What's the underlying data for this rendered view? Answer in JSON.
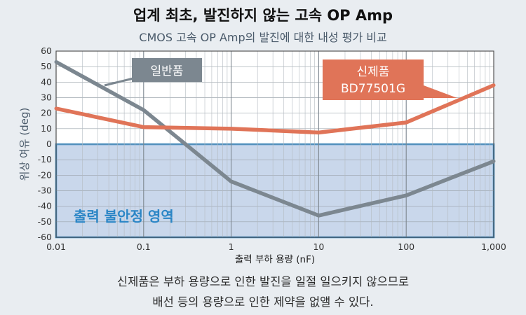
{
  "header": {
    "title": "업계 최초, 발진하지 않는 고속 OP Amp",
    "subtitle": "CMOS 고속 OP Amp의 발진에 대한 내성 평가 비교"
  },
  "footer": {
    "line1": "신제품은 부하 용량으로 인한 발진을 일절 일으키지 않으므로",
    "line2": "배선 등의 용량으로 인한 제약을 없앨 수 있다."
  },
  "chart_data": {
    "type": "line",
    "xscale": "log",
    "xlim": [
      0.01,
      1000
    ],
    "ylim": [
      -60,
      60
    ],
    "xlabel": "출력 부하 용량 (nF)",
    "ylabel": "위상 여유 (deg)",
    "x_ticks": [
      "0.01",
      "0.1",
      "1",
      "10",
      "100",
      "1,000"
    ],
    "y_ticks": [
      60,
      50,
      40,
      30,
      20,
      10,
      0,
      -10,
      -20,
      -30,
      -40,
      -50,
      -60
    ],
    "grid": true,
    "colors": {
      "plot_bg": "#ffffff",
      "unstable_fill": "#c9d7eb",
      "unstable_border": "#2b86c6",
      "general": "#7c8790",
      "new": "#e07458",
      "axis_text": "#333333"
    },
    "unstable_region": {
      "y_from": -60,
      "y_to": 0,
      "label": "출력 불안정 영역"
    },
    "series": [
      {
        "name": "일반품",
        "x": [
          0.01,
          0.1,
          1,
          10,
          100,
          1000
        ],
        "y": [
          53,
          22,
          -24,
          -46,
          -33,
          -11
        ]
      },
      {
        "name": "신제품\nBD77501G",
        "x": [
          0.01,
          0.1,
          1,
          10,
          100,
          1000
        ],
        "y": [
          23,
          11,
          10,
          7.5,
          14,
          38
        ]
      }
    ]
  }
}
